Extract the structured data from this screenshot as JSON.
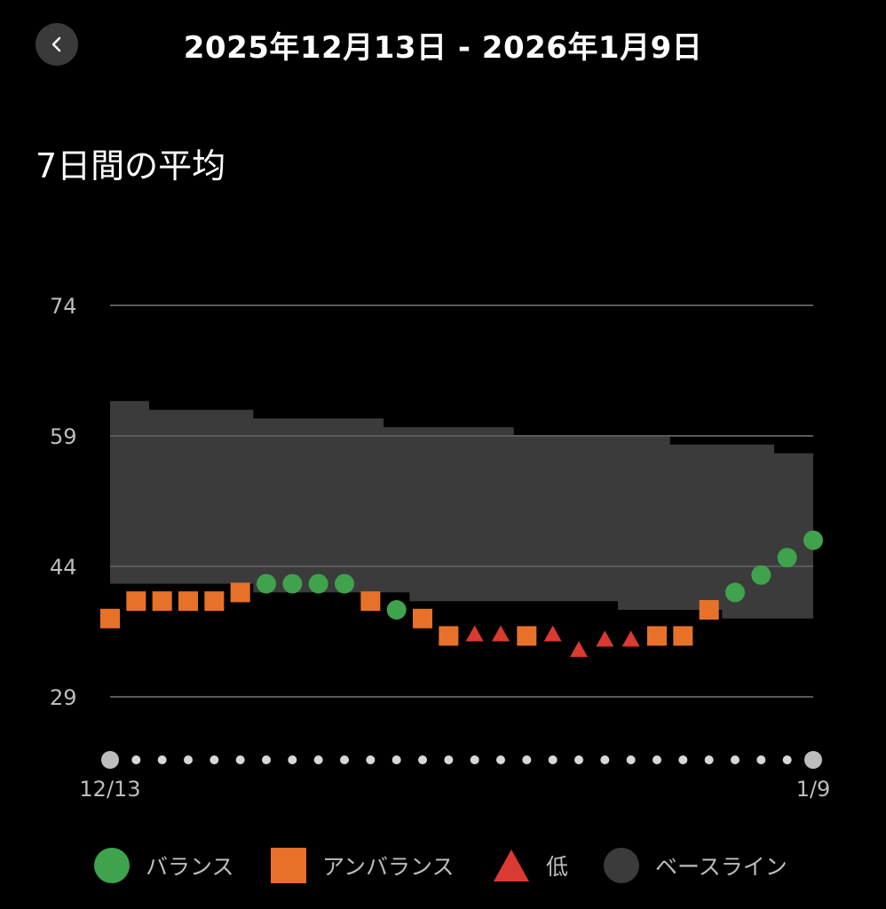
{
  "header": {
    "date_range": "2025年12月13日 - 2026年1月9日",
    "back_icon": "chevron-left-icon"
  },
  "chart_title": "7日間の平均",
  "colors": {
    "balance": "#3fa34d",
    "unbalance": "#e8712a",
    "low": "#d93a32",
    "baseline": "#3b3b3b",
    "gridline": "#5a5a5a",
    "axis_text": "#bdbdbd",
    "dot_large": "#bdbdbd",
    "dot_small": "#d8d8d8"
  },
  "legend": {
    "balance": "バランス",
    "unbalance": "アンバランス",
    "low": "低",
    "baseline": "ベースライン"
  },
  "chart_data": {
    "type": "scatter",
    "title": "7日間の平均",
    "y_ticks": [
      74,
      59,
      44,
      29
    ],
    "ylim": [
      29,
      74
    ],
    "x_labels": {
      "start": "12/13",
      "end": "1/9"
    },
    "dates": [
      "12/13",
      "12/14",
      "12/15",
      "12/16",
      "12/17",
      "12/18",
      "12/19",
      "12/20",
      "12/21",
      "12/22",
      "12/23",
      "12/24",
      "12/25",
      "12/26",
      "12/27",
      "12/28",
      "12/29",
      "12/30",
      "12/31",
      "1/1",
      "1/2",
      "1/3",
      "1/4",
      "1/5",
      "1/6",
      "1/7",
      "1/8",
      "1/9"
    ],
    "values": [
      38,
      40,
      40,
      40,
      40,
      41,
      42,
      42,
      42,
      42,
      40,
      39,
      38,
      36,
      36.2,
      36.2,
      36,
      36.2,
      34.4,
      35.6,
      35.6,
      36,
      36,
      39,
      41,
      43,
      45,
      47
    ],
    "status": [
      "unbalance",
      "unbalance",
      "unbalance",
      "unbalance",
      "unbalance",
      "unbalance",
      "balance",
      "balance",
      "balance",
      "balance",
      "unbalance",
      "balance",
      "unbalance",
      "unbalance",
      "low",
      "low",
      "unbalance",
      "low",
      "low",
      "low",
      "low",
      "unbalance",
      "unbalance",
      "unbalance",
      "balance",
      "balance",
      "balance",
      "balance"
    ],
    "baseline_upper": [
      63,
      63,
      62,
      62,
      62,
      62,
      61,
      61,
      61,
      61,
      61,
      60,
      60,
      60,
      60,
      60,
      59,
      59,
      59,
      59,
      59,
      59,
      58,
      58,
      58,
      58,
      57,
      57
    ],
    "baseline_lower": [
      42,
      42,
      42,
      42,
      42,
      42,
      41,
      41,
      41,
      41,
      41,
      41,
      40,
      40,
      40,
      40,
      40,
      40,
      40,
      40,
      39,
      39,
      39,
      39,
      38,
      38,
      38,
      38
    ]
  }
}
